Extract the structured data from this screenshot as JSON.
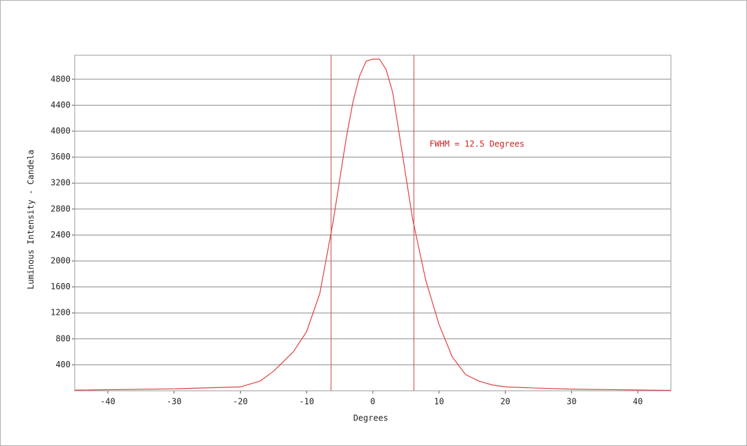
{
  "chart_data": {
    "type": "line",
    "x_label": "Degrees",
    "y_label": "Luminous Intensity - Candela",
    "annotation": "FWHM = 12.5 Degrees",
    "x": [
      -45,
      -30,
      -20,
      -17,
      -15,
      -12,
      -10,
      -8,
      -6,
      -4,
      -3,
      -2,
      -1,
      0,
      1,
      2,
      3,
      4,
      6,
      8,
      10,
      12,
      14,
      16,
      18,
      20,
      25,
      30,
      45
    ],
    "values": [
      10,
      30,
      60,
      150,
      300,
      600,
      910,
      1500,
      2600,
      3900,
      4450,
      4850,
      5080,
      5110,
      5110,
      4950,
      4600,
      3950,
      2650,
      1700,
      1020,
      520,
      250,
      150,
      90,
      60,
      40,
      25,
      5
    ],
    "color": "#e04040",
    "vlines": [
      -6.3,
      6.2
    ],
    "vline_color": "#c84848",
    "annotation_color": "#d02020",
    "xlim": [
      -45,
      45
    ],
    "ylim": [
      0,
      5170
    ],
    "xticks": [
      -40,
      -30,
      -20,
      -10,
      0,
      10,
      20,
      30,
      40
    ],
    "yticks": [
      400,
      800,
      1200,
      1600,
      2000,
      2400,
      2800,
      3200,
      3600,
      4000,
      4400,
      4800
    ],
    "grid": true
  }
}
